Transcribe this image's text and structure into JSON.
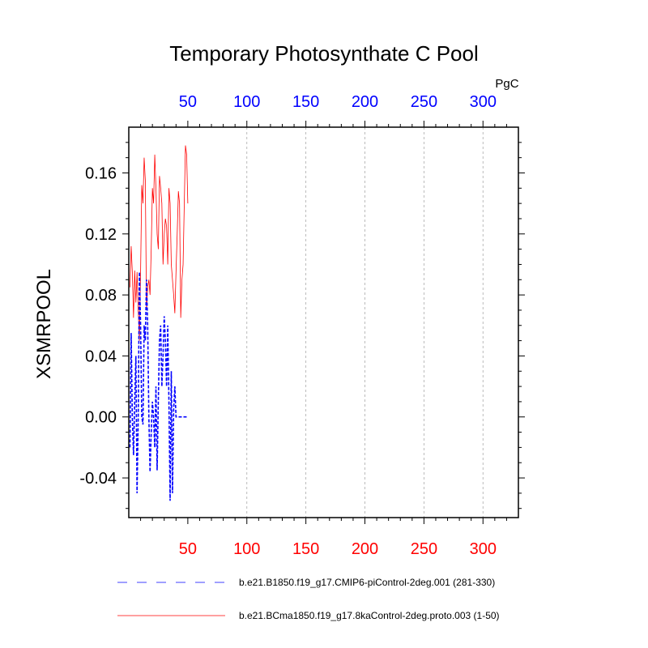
{
  "chart_data": {
    "type": "line",
    "title": "Temporary Photosynthate C Pool",
    "units": "PgC",
    "xlabel": "",
    "ylabel": "XSMRPOOL",
    "xlim": [
      0,
      330
    ],
    "ylim": [
      -0.066,
      0.19
    ],
    "x_ticks": [
      50,
      100,
      150,
      200,
      250,
      300
    ],
    "y_ticks": [
      -0.04,
      0.0,
      0.04,
      0.08,
      0.12,
      0.16
    ],
    "y_tick_labels": [
      "-0.04",
      "0.00",
      "0.04",
      "0.08",
      "0.12",
      "0.16"
    ],
    "grid": "vertical dashed at x ticks",
    "legend_placement": "bottom",
    "colors": {
      "bottom_axis_labels": "#ff0000",
      "top_axis_labels": "#0000ff"
    },
    "series": [
      {
        "name": "b.e21.BCma1850.f19_g17.8kaControl-2deg.proto.003 (1-50)",
        "color": "#ff0000",
        "dash": "solid",
        "x": [
          1,
          2,
          3,
          4,
          5,
          6,
          7,
          8,
          9,
          10,
          11,
          12,
          13,
          14,
          15,
          16,
          17,
          18,
          19,
          20,
          21,
          22,
          23,
          24,
          25,
          26,
          27,
          28,
          29,
          30,
          31,
          32,
          33,
          34,
          35,
          36,
          37,
          38,
          39,
          40,
          41,
          42,
          43,
          44,
          45,
          46,
          47,
          48,
          49,
          50
        ],
        "y": [
          0.085,
          0.112,
          0.095,
          0.065,
          0.096,
          0.075,
          0.095,
          0.07,
          0.05,
          0.095,
          0.152,
          0.14,
          0.17,
          0.155,
          0.07,
          0.085,
          0.09,
          0.08,
          0.11,
          0.15,
          0.14,
          0.172,
          0.15,
          0.12,
          0.11,
          0.158,
          0.15,
          0.14,
          0.1,
          0.12,
          0.13,
          0.125,
          0.1,
          0.15,
          0.14,
          0.1,
          0.09,
          0.08,
          0.068,
          0.095,
          0.12,
          0.148,
          0.14,
          0.065,
          0.09,
          0.1,
          0.14,
          0.178,
          0.172,
          0.14
        ]
      },
      {
        "name": "b.e21.B1850.f19_g17.CMIP6-piControl-2deg.001 (281-330)",
        "color": "#0000ff",
        "dash": "dashed",
        "x": [
          1,
          2,
          3,
          4,
          5,
          6,
          7,
          8,
          9,
          10,
          11,
          12,
          13,
          14,
          15,
          16,
          17,
          18,
          19,
          20,
          21,
          22,
          23,
          24,
          25,
          26,
          27,
          28,
          29,
          30,
          31,
          32,
          33,
          34,
          35,
          36,
          37,
          38,
          39,
          40,
          41,
          42,
          43,
          44,
          45,
          46,
          47,
          48,
          49,
          50
        ],
        "y": [
          -0.02,
          0.055,
          0.0,
          -0.025,
          0.01,
          0.04,
          -0.05,
          0.0,
          0.095,
          0.06,
          0.0,
          -0.005,
          0.06,
          0.05,
          0.09,
          0.06,
          0.0,
          -0.036,
          -0.01,
          0.01,
          0.0,
          -0.02,
          0.02,
          -0.035,
          0.01,
          0.05,
          0.06,
          0.02,
          0.04,
          0.066,
          0.05,
          0.02,
          0.06,
          0.01,
          -0.055,
          0.03,
          -0.05,
          0.005,
          0.02,
          0.0,
          0.0,
          0.0,
          0.0,
          0.0,
          0.0,
          0.0,
          0.0,
          0.0,
          0.0,
          0.0
        ]
      }
    ]
  },
  "legend": {
    "items": [
      {
        "label": "b.e21.B1850.f19_g17.CMIP6-piControl-2deg.001 (281-330)",
        "color": "#0000ff",
        "dash": "dashed"
      },
      {
        "label": "b.e21.BCma1850.f19_g17.8kaControl-2deg.proto.003 (1-50)",
        "color": "#ff0000",
        "dash": "solid"
      }
    ]
  }
}
